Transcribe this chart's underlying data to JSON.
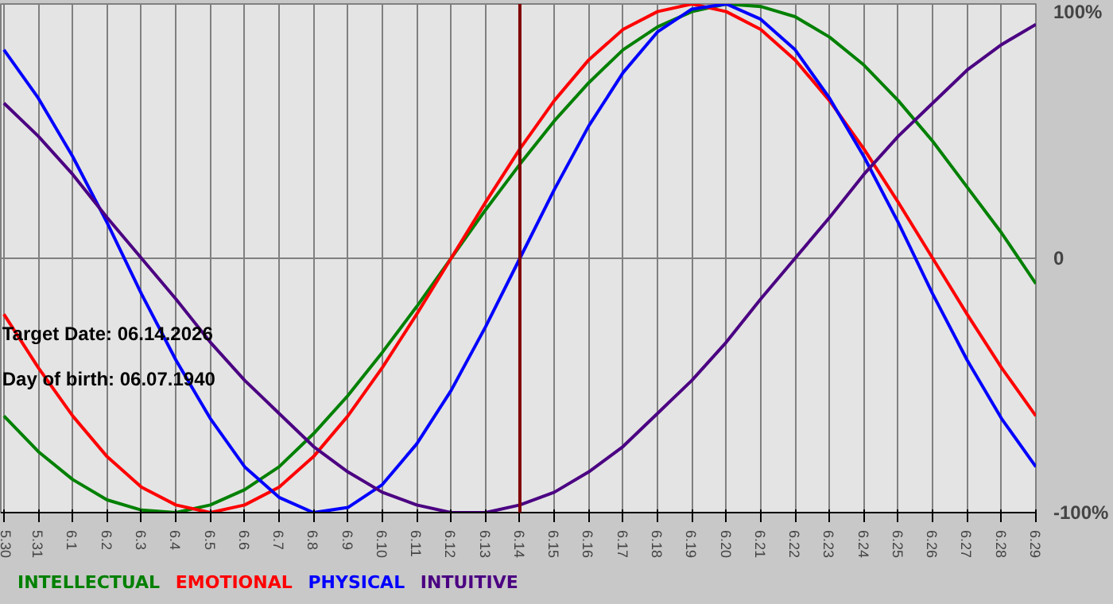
{
  "chart_data": {
    "type": "line",
    "categories": [
      "5.30",
      "5.31",
      "6.1",
      "6.2",
      "6.3",
      "6.4",
      "6.5",
      "6.6",
      "6.7",
      "6.8",
      "6.9",
      "6.10",
      "6.11",
      "6.12",
      "6.13",
      "6.14",
      "6.15",
      "6.16",
      "6.17",
      "6.18",
      "6.19",
      "6.20",
      "6.21",
      "6.22",
      "6.23",
      "6.24",
      "6.25",
      "6.26",
      "6.27",
      "6.28",
      "6.29"
    ],
    "series": [
      {
        "name": "INTELLECTUAL",
        "color": "#008000",
        "values": [
          -62,
          -76,
          -87,
          -95,
          -99,
          -100,
          -97,
          -91,
          -82,
          -69,
          -54,
          -37,
          -19,
          0,
          19,
          37,
          54,
          69,
          82,
          91,
          97,
          100,
          99,
          95,
          87,
          76,
          62,
          46,
          28,
          10,
          -10
        ]
      },
      {
        "name": "EMOTIONAL",
        "color": "#ff0000",
        "values": [
          -22,
          -43,
          -62,
          -78,
          -90,
          -97,
          -100,
          -97,
          -90,
          -78,
          -62,
          -43,
          -22,
          0,
          22,
          43,
          62,
          78,
          90,
          97,
          100,
          97,
          90,
          78,
          62,
          43,
          22,
          0,
          -22,
          -43,
          -62
        ]
      },
      {
        "name": "PHYSICAL",
        "color": "#0000ff",
        "values": [
          82,
          63,
          40,
          14,
          -14,
          -40,
          -63,
          -82,
          -94,
          -100,
          -98,
          -89,
          -73,
          -52,
          -27,
          0,
          27,
          52,
          73,
          89,
          98,
          100,
          94,
          82,
          63,
          40,
          14,
          -14,
          -40,
          -63,
          -82
        ]
      },
      {
        "name": "INTUITIVE",
        "color": "#4b0082",
        "values": [
          61,
          48,
          33,
          16,
          0,
          -16,
          -33,
          -48,
          -61,
          -74,
          -84,
          -92,
          -97,
          -100,
          -100,
          -97,
          -92,
          -84,
          -74,
          -61,
          -48,
          -33,
          -16,
          0,
          16,
          33,
          48,
          61,
          74,
          84,
          92
        ]
      }
    ],
    "ylim": [
      -100,
      100
    ],
    "yticks": [
      {
        "value": -100,
        "label": "-100%"
      },
      0,
      {
        "value": 100,
        "label": "100%"
      }
    ],
    "ref_lines": [
      {
        "axis": "x",
        "value": "6.14",
        "color": "#800000"
      }
    ],
    "annotations": [
      "Target Date: 06.14.2026",
      "Day of birth: 06.07.1940"
    ],
    "grid": true,
    "legend": "bottom",
    "line_style": "solid"
  }
}
